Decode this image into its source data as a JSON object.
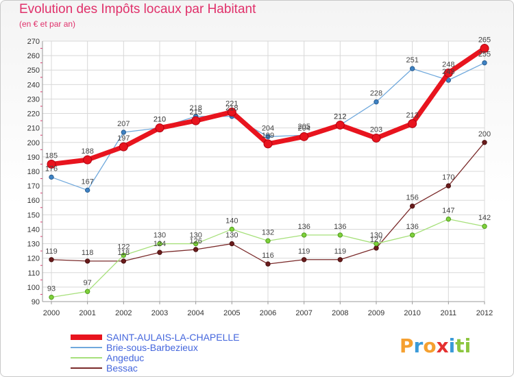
{
  "header": {
    "title": "Evolution des Impôts locaux par Habitant",
    "subtitle": "(en € et par an)"
  },
  "logo": {
    "text": "Proxiti",
    "letters": [
      {
        "ch": "P",
        "color": "#f5a030"
      },
      {
        "ch": "r",
        "color": "#3a9ad9"
      },
      {
        "ch": "o",
        "color": "#f5a030"
      },
      {
        "ch": "x",
        "color": "#e53030"
      },
      {
        "ch": "i",
        "color": "#3a9ad9"
      },
      {
        "ch": "t",
        "color": "#8cc63f"
      },
      {
        "ch": "i",
        "color": "#8cc63f"
      }
    ]
  },
  "chart_data": {
    "type": "line",
    "title": "Evolution des Impôts locaux par Habitant",
    "subtitle": "(en € et par an)",
    "xlabel": "",
    "ylabel": "",
    "x": [
      "2000",
      "2001",
      "2002",
      "2003",
      "2004",
      "2005",
      "2006",
      "2007",
      "2008",
      "2009",
      "2010",
      "2011",
      "2012"
    ],
    "ylim": [
      90,
      270
    ],
    "yticks": [
      90,
      100,
      110,
      120,
      130,
      140,
      150,
      160,
      170,
      180,
      190,
      200,
      210,
      220,
      230,
      240,
      250,
      260,
      270
    ],
    "grid": true,
    "legend_position": "bottom-left",
    "series": [
      {
        "name": "SAINT-AULAIS-LA-CHAPELLE",
        "color": "#e8141e",
        "values": [
          185,
          188,
          197,
          210,
          215,
          221,
          199,
          204,
          212,
          203,
          213,
          248,
          265
        ]
      },
      {
        "name": "Brie-sous-Barbezieux",
        "color": "#6fa8dc",
        "values": [
          176,
          167,
          207,
          210,
          218,
          218,
          204,
          205,
          212,
          228,
          251,
          243,
          255
        ]
      },
      {
        "name": "Angeduc",
        "color": "#a6e07a",
        "values": [
          93,
          97,
          122,
          130,
          130,
          140,
          132,
          136,
          136,
          130,
          136,
          147,
          142
        ]
      },
      {
        "name": "Bessac",
        "color": "#7a2a2a",
        "values": [
          119,
          118,
          118,
          124,
          126,
          130,
          116,
          119,
          119,
          127,
          156,
          170,
          200
        ]
      }
    ],
    "point_labels": [
      {
        "x": "2000",
        "text": "185"
      },
      {
        "x": "2001",
        "text": "188"
      },
      {
        "x": "2002",
        "text": "197"
      },
      {
        "x": "2003",
        "text": "210"
      },
      {
        "x": "2004",
        "text": "215"
      },
      {
        "x": "2005",
        "text": "221"
      },
      {
        "x": "2006",
        "text": "199"
      },
      {
        "x": "2007",
        "text": "204"
      },
      {
        "x": "2008",
        "text": "212"
      },
      {
        "x": "2009",
        "text": "203"
      },
      {
        "x": "2010",
        "text": "213"
      },
      {
        "x": "2011",
        "text": "248"
      },
      {
        "x": "2012",
        "text": "265"
      },
      {
        "x": "2000",
        "text": "176"
      },
      {
        "x": "2001",
        "text": "167"
      },
      {
        "x": "2002",
        "text": "207"
      },
      {
        "x": "2003",
        "text": "210"
      },
      {
        "x": "2004",
        "text": "218"
      },
      {
        "x": "2005",
        "text": "218"
      },
      {
        "x": "2006",
        "text": "204"
      },
      {
        "x": "2007",
        "text": "205"
      },
      {
        "x": "2008",
        "text": "212"
      },
      {
        "x": "2009",
        "text": "228"
      },
      {
        "x": "2010",
        "text": "251"
      },
      {
        "x": "2011",
        "text": "243"
      },
      {
        "x": "2012",
        "text": "255"
      },
      {
        "x": "2000",
        "text": "93"
      },
      {
        "x": "2001",
        "text": "97"
      },
      {
        "x": "2002",
        "text": "122"
      },
      {
        "x": "2003",
        "text": "130"
      },
      {
        "x": "2004",
        "text": "130"
      },
      {
        "x": "2005",
        "text": "140"
      },
      {
        "x": "2006",
        "text": "132"
      },
      {
        "x": "2007",
        "text": "136"
      },
      {
        "x": "2008",
        "text": "136"
      },
      {
        "x": "2009",
        "text": "130"
      },
      {
        "x": "2010",
        "text": "136"
      },
      {
        "x": "2011",
        "text": "147"
      },
      {
        "x": "2012",
        "text": "142"
      },
      {
        "x": "2000",
        "text": "119"
      },
      {
        "x": "2001",
        "text": "118"
      },
      {
        "x": "2002",
        "text": "118"
      },
      {
        "x": "2003",
        "text": "124"
      },
      {
        "x": "2004",
        "text": "126"
      },
      {
        "x": "2005",
        "text": "130"
      },
      {
        "x": "2006",
        "text": "116"
      },
      {
        "x": "2007",
        "text": "119"
      },
      {
        "x": "2008",
        "text": "119"
      },
      {
        "x": "2009",
        "text": "127"
      },
      {
        "x": "2010",
        "text": "156"
      },
      {
        "x": "2011",
        "text": "170"
      },
      {
        "x": "2012",
        "text": "200"
      }
    ]
  }
}
